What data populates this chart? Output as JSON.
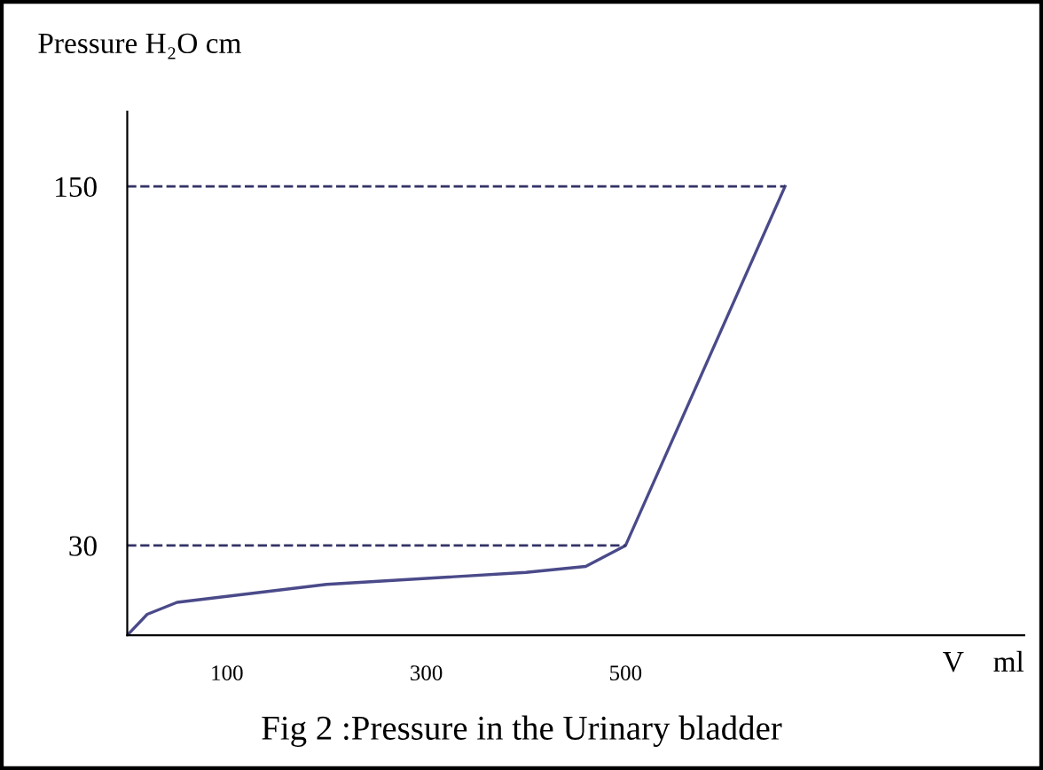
{
  "chart_data": {
    "type": "line",
    "xlabel": "V    ml",
    "ylabel": "Pressure H₂O cm",
    "annotations": [
      "Fig 2 :Pressure in the Urinary bladder"
    ],
    "series": [
      {
        "color": "#4a4a8a",
        "x": [
          0,
          20,
          50,
          100,
          200,
          300,
          400,
          460,
          500,
          660
        ],
        "values": [
          0,
          7,
          11,
          13,
          17,
          19,
          21,
          23,
          30,
          150
        ]
      }
    ],
    "xlim": [
      0,
      900
    ],
    "ylim": [
      0,
      175
    ],
    "xticks": [
      100,
      300,
      500
    ],
    "yticks": [
      30,
      150
    ],
    "ref_lines": [
      {
        "axis": "y",
        "value": 30,
        "color": "#333366",
        "line_style": "dashed"
      },
      {
        "axis": "y",
        "value": 150,
        "color": "#333366",
        "line_style": "dashed"
      }
    ],
    "grid": false,
    "legend": false,
    "marker": "none",
    "line_style": "solid"
  }
}
